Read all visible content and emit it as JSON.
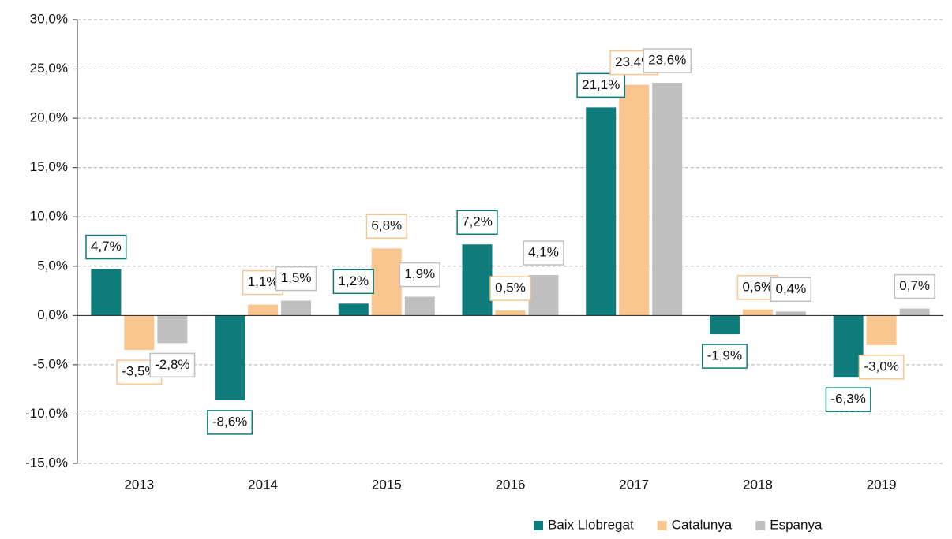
{
  "chart_data": {
    "type": "bar",
    "categories": [
      "2013",
      "2014",
      "2015",
      "2016",
      "2017",
      "2018",
      "2019"
    ],
    "series": [
      {
        "name": "Baix Llobregat",
        "color": "#0e7c7b",
        "values": [
          4.7,
          -8.6,
          1.2,
          7.2,
          21.1,
          -1.9,
          -6.3
        ],
        "value_labels": [
          "4,7%",
          "-8,6%",
          "1,2%",
          "7,2%",
          "21,1%",
          "-1,9%",
          "-6,3%"
        ]
      },
      {
        "name": "Catalunya",
        "color": "#fac690",
        "values": [
          -3.5,
          1.1,
          6.8,
          0.5,
          23.4,
          0.6,
          -3.0
        ],
        "value_labels": [
          "-3,5%",
          "1,1%",
          "6,8%",
          "0,5%",
          "23,4%",
          "0,6%",
          "-3,0%"
        ]
      },
      {
        "name": "Espanya",
        "color": "#bfbfbf",
        "values": [
          -2.8,
          1.5,
          1.9,
          4.1,
          23.6,
          0.4,
          0.7
        ],
        "value_labels": [
          "-2,8%",
          "1,5%",
          "1,9%",
          "4,1%",
          "23,6%",
          "0,4%",
          "0,7%"
        ]
      }
    ],
    "ylim": [
      -15,
      30
    ],
    "yticks": [
      {
        "value": -15,
        "label": "-15,0%"
      },
      {
        "value": -10,
        "label": "-10,0%"
      },
      {
        "value": -5,
        "label": "-5,0%"
      },
      {
        "value": 0,
        "label": "0,0%"
      },
      {
        "value": 5,
        "label": "5,0%"
      },
      {
        "value": 10,
        "label": "10,0%"
      },
      {
        "value": 15,
        "label": "15,0%"
      },
      {
        "value": 20,
        "label": "20,0%"
      },
      {
        "value": 25,
        "label": "25,0%"
      },
      {
        "value": 30,
        "label": "30,0%"
      }
    ],
    "grid": true,
    "legend": "bottom-right"
  }
}
